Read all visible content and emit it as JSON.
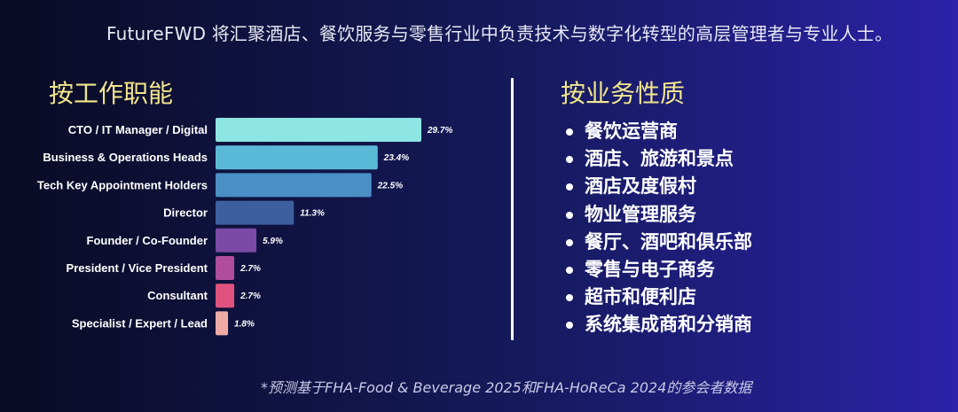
{
  "intro_text": "FutureFWD 将汇聚酒店、餐饮服务与零售行业中负责技术与数字化转型的高层管理者与专业人士。",
  "left_title": "按工作职能",
  "right_title": "按业务性质",
  "business_types": [
    "餐饮运营商",
    "酒店、旅游和景点",
    "酒店及度假村",
    "物业管理服务",
    "餐厅、酒吧和俱乐部",
    "零售与电子商务",
    "超市和便利店",
    "系统集成商和分销商"
  ],
  "footnote": "*预测基于FHA-Food & Beverage 2025和FHA-HoReCa 2024的参会者数据",
  "chart_data": {
    "type": "bar",
    "orientation": "horizontal",
    "title": "按工作职能",
    "categories": [
      "CTO / IT Manager / Digital",
      "Business & Operations Heads",
      "Tech Key Appointment Holders",
      "Director",
      "Founder / Co-Founder",
      "President / Vice President",
      "Consultant",
      "Specialist / Expert / Lead"
    ],
    "values": [
      29.7,
      23.4,
      22.5,
      11.3,
      5.9,
      2.7,
      2.7,
      1.8
    ],
    "value_labels": [
      "29.7%",
      "23.4%",
      "22.5%",
      "11.3%",
      "5.9%",
      "2.7%",
      "2.7%",
      "1.8%"
    ],
    "unit": "%",
    "bar_colors": [
      "#8ee6e4",
      "#5bb9d8",
      "#4a8fc6",
      "#3d5f9e",
      "#7b4aa6",
      "#b04e9c",
      "#e0527e",
      "#f0aaa6"
    ],
    "grid": false,
    "legend": "none"
  }
}
